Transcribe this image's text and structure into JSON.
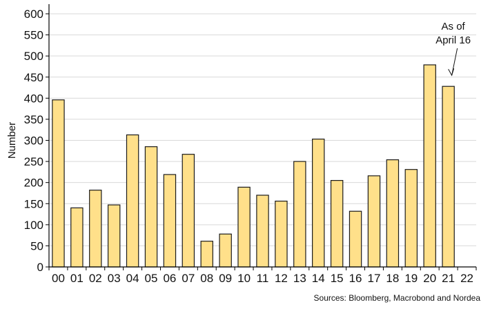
{
  "chart_data": {
    "type": "bar",
    "categories": [
      "00",
      "01",
      "02",
      "03",
      "04",
      "05",
      "06",
      "07",
      "08",
      "09",
      "10",
      "11",
      "12",
      "13",
      "14",
      "15",
      "16",
      "17",
      "18",
      "19",
      "20",
      "21",
      "22"
    ],
    "values": [
      396,
      140,
      182,
      147,
      313,
      285,
      219,
      267,
      61,
      78,
      189,
      170,
      156,
      250,
      303,
      205,
      132,
      216,
      254,
      231,
      479,
      428,
      null
    ],
    "ylabel": "Number",
    "xlabel": "",
    "ylim": [
      0,
      600
    ],
    "yticks": [
      0,
      50,
      100,
      150,
      200,
      250,
      300,
      350,
      400,
      450,
      500,
      550,
      600
    ],
    "grid": true,
    "annotation": {
      "lines": [
        "As of",
        "April 16"
      ],
      "target_category": "21"
    },
    "source": "Sources: Bloomberg, Macrobond and Nordea",
    "colors": {
      "bar_fill": "#FFE08A",
      "bar_stroke": "#1a1a1a",
      "grid": "#d9d9d9",
      "axis": "#000000"
    }
  }
}
